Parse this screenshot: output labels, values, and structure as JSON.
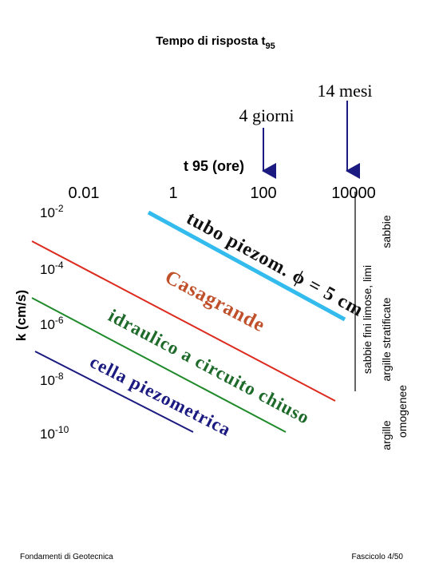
{
  "title": {
    "text": "Tempo di risposta t",
    "sub": "95"
  },
  "annotations": [
    "14 mesi",
    "4 giorni"
  ],
  "top_axis": {
    "label": "t 95 (ore)",
    "ticks": [
      "0.01",
      "1",
      "100",
      "10000"
    ]
  },
  "left_axis": {
    "label": "k (cm/s)",
    "ticks": [
      {
        "base": "10",
        "exp": "-2"
      },
      {
        "base": "10",
        "exp": "-4"
      },
      {
        "base": "10",
        "exp": "-6"
      },
      {
        "base": "10",
        "exp": "-8"
      },
      {
        "base": "10",
        "exp": "-10"
      }
    ]
  },
  "lines": [
    {
      "label": "tubo piezom. ϕ = 5 cm",
      "color": "#33bbee",
      "label_color": "#111111"
    },
    {
      "label": "Casagrande",
      "color": "#dd2a1e",
      "label_color": "#c0502a"
    },
    {
      "label": "idraulico a circuito chiuso",
      "color": "#1e8a2a",
      "label_color": "#1e6a2a"
    },
    {
      "label": "cella piezometrica",
      "color": "#1a1a80",
      "label_color": "#1a1a80"
    }
  ],
  "soil_labels": [
    "sabbie",
    "sabbie fini limose, limi",
    "argille stratificate",
    "argille",
    "omogenee"
  ],
  "footer": {
    "left": "Fondamenti di Geotecnica",
    "right": "Fascicolo 4/50"
  }
}
